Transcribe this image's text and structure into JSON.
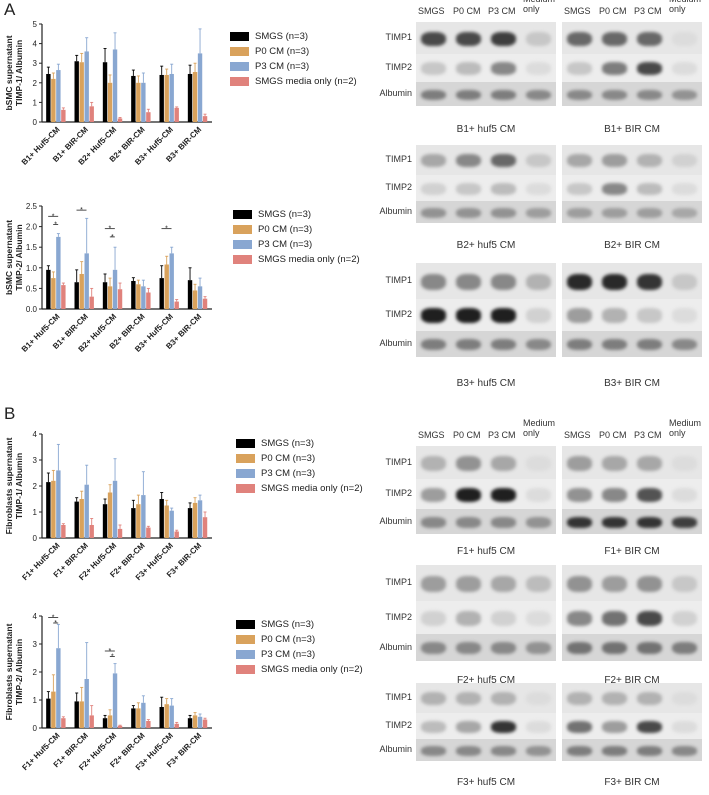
{
  "panels": [
    {
      "label": "A",
      "charts": [
        {
          "type": "bar",
          "ylabel": "bSMC supernatant\nTIMP-1/ Albumin",
          "ylim": [
            0,
            5
          ],
          "yticks": [
            "0",
            "1",
            "2",
            "3",
            "4",
            "5"
          ],
          "categories": [
            "B1+ Huf5-CM",
            "B1+ BIR-CM",
            "B2+ Huf5-CM",
            "B2+ BIR-CM",
            "B3+ Huf5-CM",
            "B3+ BIR-CM"
          ],
          "series": [
            {
              "name": "SMGS (n=3)",
              "color": "#000000",
              "values": [
                2.45,
                3.1,
                3.05,
                2.35,
                2.4,
                2.45
              ],
              "err": [
                0.35,
                0.3,
                0.7,
                0.3,
                0.45,
                0.45
              ]
            },
            {
              "name": "P0 CM (n=3)",
              "color": "#d9a25c",
              "values": [
                2.2,
                3.05,
                2.0,
                2.0,
                2.4,
                2.55
              ],
              "err": [
                0.3,
                0.45,
                0.4,
                0.35,
                0.3,
                0.45
              ]
            },
            {
              "name": "P3 CM (n=3)",
              "color": "#89a7d1",
              "values": [
                2.65,
                3.6,
                3.7,
                2.0,
                2.45,
                3.5
              ],
              "err": [
                0.3,
                0.7,
                0.85,
                0.5,
                0.5,
                1.25
              ]
            },
            {
              "name": "SMGS media only (n=2)",
              "color": "#e0827c",
              "values": [
                0.62,
                0.8,
                0.18,
                0.5,
                0.72,
                0.3
              ],
              "err": [
                0.1,
                0.2,
                0.05,
                0.15,
                0.05,
                0.1
              ]
            }
          ],
          "significance": []
        },
        {
          "type": "bar",
          "ylabel": "bSMC supernatant\nTIMP-2/ Albumin",
          "ylim": [
            0,
            2.5
          ],
          "yticks": [
            "0.0",
            "0.5",
            "1.0",
            "1.5",
            "2.0",
            "2.5"
          ],
          "categories": [
            "B1+ Huf5-CM",
            "B1+ BIR-CM",
            "B2+ Huf5-CM",
            "B2+ BIR-CM",
            "B3+ Huf5-CM",
            "B3+ BIR-CM"
          ],
          "series": [
            {
              "name": "SMGS (n=3)",
              "color": "#000000",
              "values": [
                0.95,
                0.65,
                0.65,
                0.68,
                0.75,
                0.7
              ],
              "err": [
                0.1,
                0.3,
                0.2,
                0.08,
                0.3,
                0.3
              ]
            },
            {
              "name": "P0 CM (n=3)",
              "color": "#d9a25c",
              "values": [
                0.75,
                0.85,
                0.55,
                0.6,
                1.08,
                0.45
              ],
              "err": [
                0.15,
                0.3,
                0.2,
                0.1,
                0.2,
                0.15
              ]
            },
            {
              "name": "P3 CM (n=3)",
              "color": "#89a7d1",
              "values": [
                1.75,
                1.35,
                0.95,
                0.55,
                1.35,
                0.55
              ],
              "err": [
                0.08,
                0.85,
                0.55,
                0.15,
                0.15,
                0.2
              ]
            },
            {
              "name": "SMGS media only (n=2)",
              "color": "#e0827c",
              "values": [
                0.58,
                0.3,
                0.48,
                0.4,
                0.18,
                0.25
              ],
              "err": [
                0.05,
                0.2,
                0.15,
                0.1,
                0.05,
                0.05
              ]
            }
          ],
          "significance": [
            {
              "group": 0,
              "from": 0,
              "to": 2,
              "level": 2.25,
              "mark": "*"
            },
            {
              "group": 0,
              "from": 1,
              "to": 2,
              "level": 2.05,
              "mark": "*"
            },
            {
              "group": 1,
              "from": 0,
              "to": 2,
              "level": 2.4,
              "mark": "*"
            },
            {
              "group": 2,
              "from": 0,
              "to": 2,
              "level": 1.95,
              "mark": "*"
            },
            {
              "group": 2,
              "from": 1,
              "to": 2,
              "level": 1.75,
              "mark": "*"
            },
            {
              "group": 4,
              "from": 0,
              "to": 2,
              "level": 1.95,
              "mark": "*"
            }
          ]
        }
      ],
      "blots": [
        {
          "caption": "B1+ huf5 CM",
          "header": [
            "SMGS",
            "P0 CM",
            "P3 CM",
            "Medium only"
          ],
          "bands": [
            "TIMP1",
            "TIMP2",
            "Albumin"
          ]
        },
        {
          "caption": "B1+ BIR CM",
          "header": [
            "SMGS",
            "P0 CM",
            "P3 CM",
            "Medium only"
          ],
          "bands": []
        },
        {
          "caption": "B2+ huf5 CM",
          "header": [],
          "bands": [
            "TIMP1",
            "TIMP2",
            "Albumin"
          ]
        },
        {
          "caption": "B2+ BIR CM",
          "header": [],
          "bands": []
        },
        {
          "caption": "B3+ huf5 CM",
          "header": [],
          "bands": [
            "TIMP1",
            "TIMP2",
            "Albumin"
          ]
        },
        {
          "caption": "B3+ BIR CM",
          "header": [],
          "bands": []
        }
      ]
    },
    {
      "label": "B",
      "charts": [
        {
          "type": "bar",
          "ylabel": "Fibroblasts supernatant\nTIMP-1/ Albumin",
          "ylim": [
            0,
            4
          ],
          "yticks": [
            "0",
            "1",
            "2",
            "3",
            "4"
          ],
          "categories": [
            "F1+ Huf5-CM",
            "F1+ BIR-CM",
            "F2+ Huf5-CM",
            "F2+ BIR-CM",
            "F3+ Huf5-CM",
            "F3+ BIR-CM"
          ],
          "series": [
            {
              "name": "SMGS (n=3)",
              "color": "#000000",
              "values": [
                2.15,
                1.4,
                1.3,
                1.15,
                1.5,
                1.15
              ],
              "err": [
                0.35,
                0.15,
                0.2,
                0.3,
                0.25,
                0.2
              ]
            },
            {
              "name": "P0 CM (n=3)",
              "color": "#d9a25c",
              "values": [
                2.2,
                1.5,
                1.75,
                1.3,
                1.25,
                1.35
              ],
              "err": [
                0.4,
                0.3,
                0.3,
                0.35,
                0.2,
                0.2
              ]
            },
            {
              "name": "P3 CM (n=3)",
              "color": "#89a7d1",
              "values": [
                2.6,
                2.05,
                2.2,
                1.65,
                1.05,
                1.45
              ],
              "err": [
                1.0,
                0.75,
                0.85,
                0.9,
                0.1,
                0.2
              ]
            },
            {
              "name": "SMGS media only (n=2)",
              "color": "#e0827c",
              "values": [
                0.5,
                0.5,
                0.35,
                0.4,
                0.25,
                0.8
              ],
              "err": [
                0.05,
                0.25,
                0.15,
                0.05,
                0.05,
                0.2
              ]
            }
          ],
          "significance": []
        },
        {
          "type": "bar",
          "ylabel": "Fibroblasts supernatant\nTIMP-2/ Albumin",
          "ylim": [
            0,
            4
          ],
          "yticks": [
            "0",
            "1",
            "2",
            "3",
            "4"
          ],
          "categories": [
            "F1+ Huf5-CM",
            "F1+ BIR-CM",
            "F2+ Huf5-CM",
            "F2+ BIR-CM",
            "F3+ Huf5-CM",
            "F3+ BIR-CM"
          ],
          "series": [
            {
              "name": "SMGS (n=3)",
              "color": "#000000",
              "values": [
                1.05,
                0.95,
                0.35,
                0.7,
                0.75,
                0.35
              ],
              "err": [
                0.25,
                0.3,
                0.1,
                0.1,
                0.35,
                0.1
              ]
            },
            {
              "name": "P0 CM (n=3)",
              "color": "#d9a25c",
              "values": [
                1.3,
                0.95,
                0.45,
                0.7,
                0.85,
                0.45
              ],
              "err": [
                0.6,
                0.5,
                0.2,
                0.2,
                0.2,
                0.1
              ]
            },
            {
              "name": "P3 CM (n=3)",
              "color": "#89a7d1",
              "values": [
                2.85,
                1.75,
                1.95,
                0.9,
                0.8,
                0.4
              ],
              "err": [
                0.85,
                1.3,
                0.35,
                0.25,
                0.25,
                0.1
              ]
            },
            {
              "name": "SMGS media only (n=2)",
              "color": "#e0827c",
              "values": [
                0.35,
                0.45,
                0.08,
                0.25,
                0.15,
                0.3
              ],
              "err": [
                0.05,
                0.35,
                0.02,
                0.05,
                0.05,
                0.05
              ]
            }
          ],
          "significance": [
            {
              "group": 0,
              "from": 0,
              "to": 2,
              "level": 3.95,
              "mark": "*"
            },
            {
              "group": 0,
              "from": 1,
              "to": 2,
              "level": 3.75,
              "mark": "*"
            },
            {
              "group": 2,
              "from": 0,
              "to": 2,
              "level": 2.75,
              "mark": "*"
            },
            {
              "group": 2,
              "from": 1,
              "to": 2,
              "level": 2.55,
              "mark": "*"
            }
          ]
        }
      ],
      "blots": [
        {
          "caption": "F1+ huf5 CM",
          "header": [
            "SMGS",
            "P0 CM",
            "P3 CM",
            "Medium only"
          ],
          "bands": [
            "TIMP1",
            "TIMP2",
            "Albumin"
          ]
        },
        {
          "caption": "F1+ BIR CM",
          "header": [
            "SMGS",
            "P0 CM",
            "P3 CM",
            "Medium only"
          ],
          "bands": []
        },
        {
          "caption": "F2+ huf5 CM",
          "header": [],
          "bands": [
            "TIMP1",
            "TIMP2",
            "Albumin"
          ]
        },
        {
          "caption": "F2+ BIR CM",
          "header": [],
          "bands": []
        },
        {
          "caption": "F3+ huf5 CM",
          "header": [],
          "bands": [
            "TIMP1",
            "TIMP2",
            "Albumin"
          ]
        },
        {
          "caption": "F3+ BIR CM",
          "header": [],
          "bands": []
        }
      ]
    }
  ]
}
